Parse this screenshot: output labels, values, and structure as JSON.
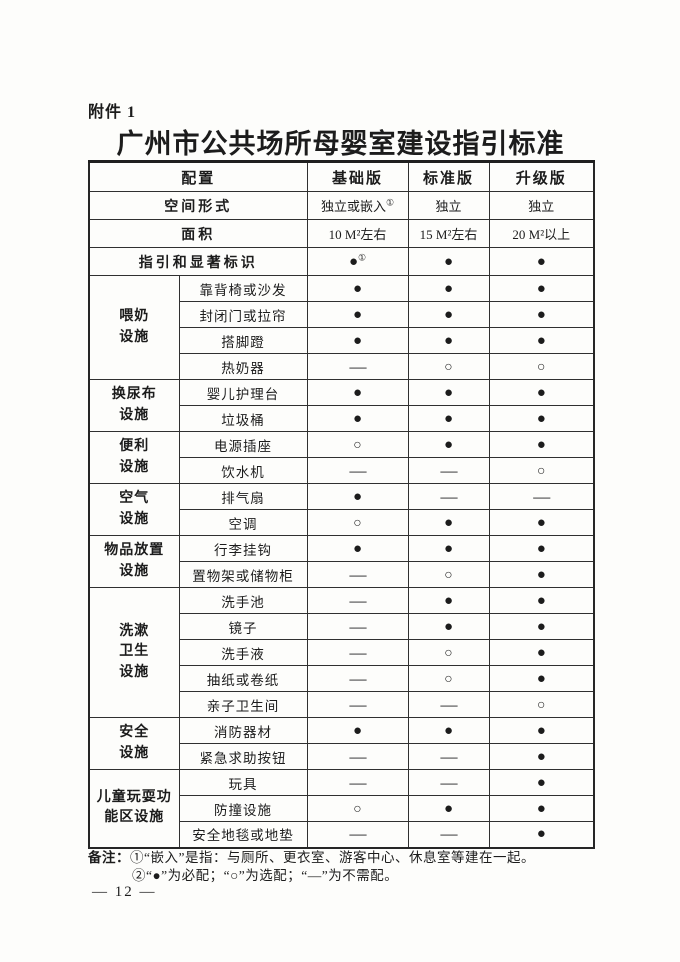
{
  "page": {
    "attachment_label": "附件 1",
    "title": "广州市公共场所母婴室建设指引标准",
    "page_number": "— 12 —"
  },
  "legend": {
    "required_symbol": "●",
    "required_meaning": "必配",
    "optional_symbol": "○",
    "optional_meaning": "选配",
    "not_required_symbol": "—",
    "not_required_meaning": "不需配"
  },
  "notes": {
    "label": "备注：",
    "line1": "①“嵌入”是指：与厕所、更衣室、游客中心、休息室等建在一起。",
    "line2": "②“●”为必配；“○”为选配；“—”为不需配。"
  },
  "table": {
    "columns": [
      "配置",
      "基础版",
      "标准版",
      "升级版"
    ],
    "top_rows": [
      {
        "label": "空间形式",
        "values": [
          {
            "text": "独立或嵌入",
            "sup": "①"
          },
          "独立",
          "独立"
        ]
      },
      {
        "label": "面积",
        "values": [
          "10 M²左右",
          "15 M²左右",
          "20 M²以上"
        ]
      },
      {
        "label": "指引和显著标识",
        "values": [
          {
            "text": "●",
            "sup": "①"
          },
          "●",
          "●"
        ]
      }
    ],
    "groups": [
      {
        "name": "喂奶\n设施",
        "rows": [
          {
            "label": "靠背椅或沙发",
            "values": [
              "●",
              "●",
              "●"
            ]
          },
          {
            "label": "封闭门或拉帘",
            "values": [
              "●",
              "●",
              "●"
            ]
          },
          {
            "label": "搭脚蹬",
            "values": [
              "●",
              "●",
              "●"
            ]
          },
          {
            "label": "热奶器",
            "values": [
              "—",
              "○",
              "○"
            ]
          }
        ]
      },
      {
        "name": "换尿布\n设施",
        "rows": [
          {
            "label": "婴儿护理台",
            "values": [
              "●",
              "●",
              "●"
            ]
          },
          {
            "label": "垃圾桶",
            "values": [
              "●",
              "●",
              "●"
            ]
          }
        ]
      },
      {
        "name": "便利\n设施",
        "rows": [
          {
            "label": "电源插座",
            "values": [
              "○",
              "●",
              "●"
            ]
          },
          {
            "label": "饮水机",
            "values": [
              "—",
              "—",
              "○"
            ]
          }
        ]
      },
      {
        "name": "空气\n设施",
        "rows": [
          {
            "label": "排气扇",
            "values": [
              "●",
              "—",
              "—"
            ]
          },
          {
            "label": "空调",
            "values": [
              "○",
              "●",
              "●"
            ]
          }
        ]
      },
      {
        "name": "物品放置\n设施",
        "rows": [
          {
            "label": "行李挂钩",
            "values": [
              "●",
              "●",
              "●"
            ]
          },
          {
            "label": "置物架或储物柜",
            "values": [
              "—",
              "○",
              "●"
            ]
          }
        ]
      },
      {
        "name": "洗漱\n卫生\n设施",
        "rows": [
          {
            "label": "洗手池",
            "values": [
              "—",
              "●",
              "●"
            ]
          },
          {
            "label": "镜子",
            "values": [
              "—",
              "●",
              "●"
            ]
          },
          {
            "label": "洗手液",
            "values": [
              "—",
              "○",
              "●"
            ]
          },
          {
            "label": "抽纸或卷纸",
            "values": [
              "—",
              "○",
              "●"
            ]
          },
          {
            "label": "亲子卫生间",
            "values": [
              "—",
              "—",
              "○"
            ]
          }
        ]
      },
      {
        "name": "安全\n设施",
        "rows": [
          {
            "label": "消防器材",
            "values": [
              "●",
              "●",
              "●"
            ]
          },
          {
            "label": "紧急求助按钮",
            "values": [
              "—",
              "—",
              "●"
            ]
          }
        ]
      },
      {
        "name": "儿童玩耍功\n能区设施",
        "rows": [
          {
            "label": "玩具",
            "values": [
              "—",
              "—",
              "●"
            ]
          },
          {
            "label": "防撞设施",
            "values": [
              "○",
              "●",
              "●"
            ]
          },
          {
            "label": "安全地毯或地垫",
            "values": [
              "—",
              "—",
              "●"
            ]
          }
        ]
      }
    ]
  }
}
